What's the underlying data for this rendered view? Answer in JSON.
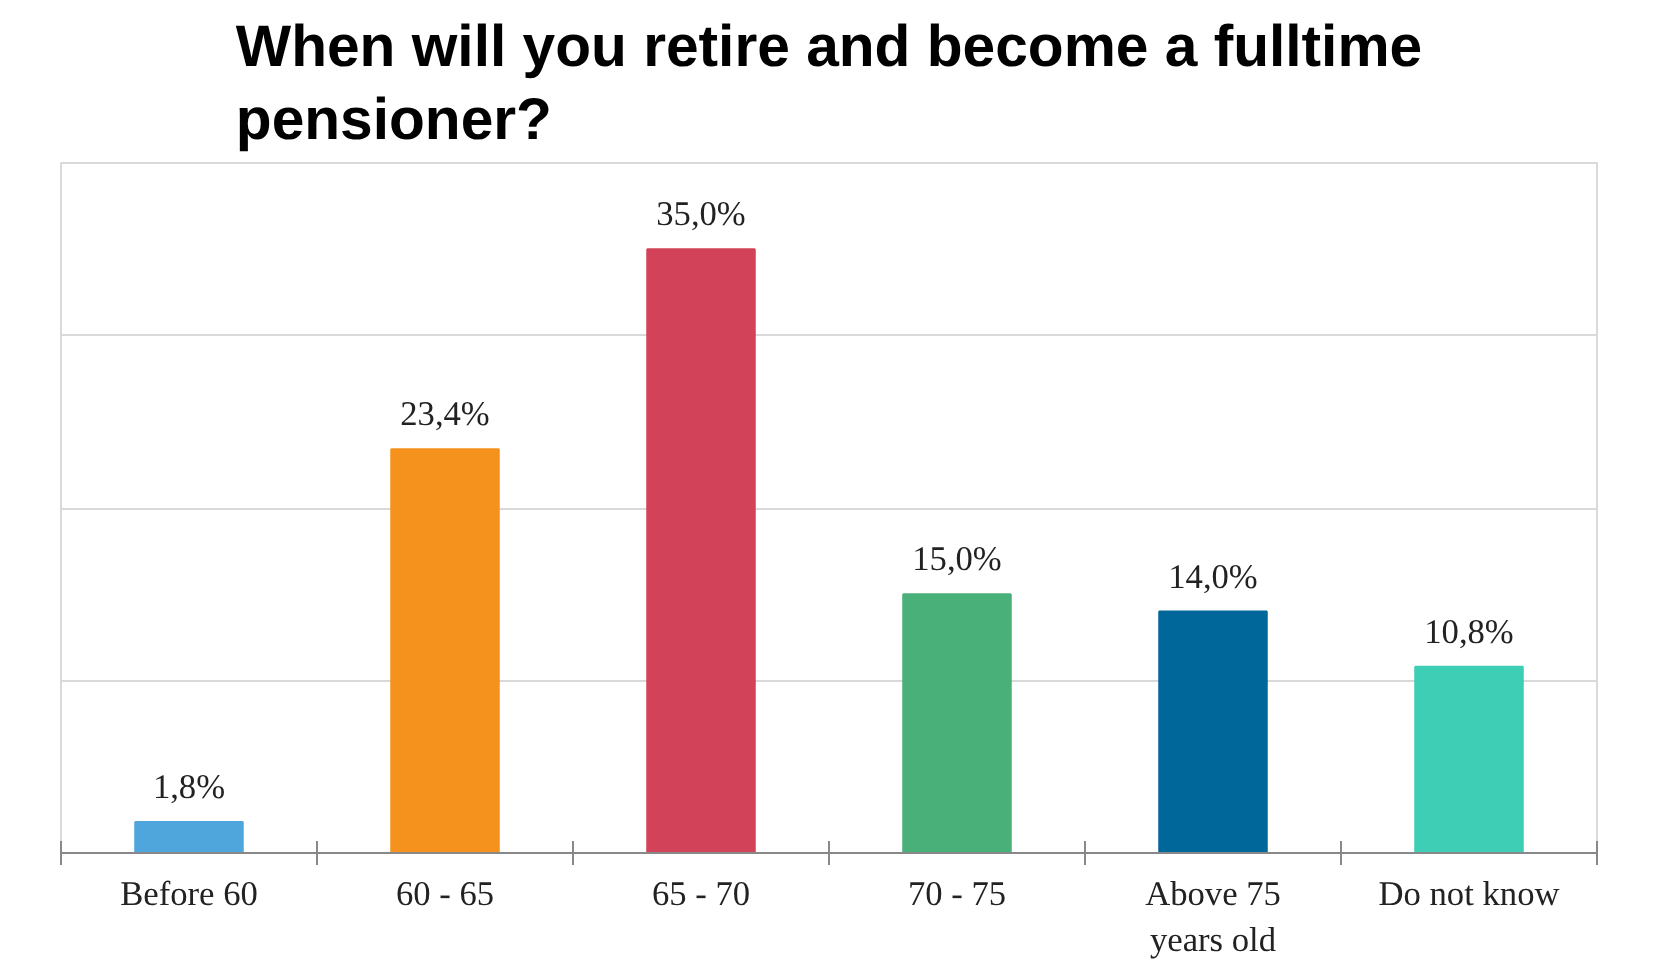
{
  "chart_data": {
    "type": "bar",
    "title": "When will you retire and become a fulltime pensioner?",
    "categories": [
      "Before 60",
      "60 - 65",
      "65 - 70",
      "70 - 75",
      "Above 75\nyears old",
      "Do not know"
    ],
    "values": [
      1.8,
      23.4,
      35.0,
      15.0,
      14.0,
      10.8
    ],
    "colors": [
      "#4ea6dc",
      "#f5921e",
      "#d2435a",
      "#4ab07a",
      "#00679a",
      "#3ecdb5"
    ],
    "value_labels": [
      "1,8%",
      "23,4%",
      "35,0%",
      "15,0%",
      "14,0%",
      "10,8%"
    ],
    "ylim": [
      0,
      40
    ],
    "yticks": [
      {
        "value": 0,
        "label": null
      },
      {
        "value": 10,
        "label": null
      },
      {
        "value": 20,
        "label": null
      },
      {
        "value": 30,
        "label": null
      },
      {
        "value": 40,
        "label": null
      }
    ],
    "tick_labels": "x",
    "grid": "y"
  }
}
